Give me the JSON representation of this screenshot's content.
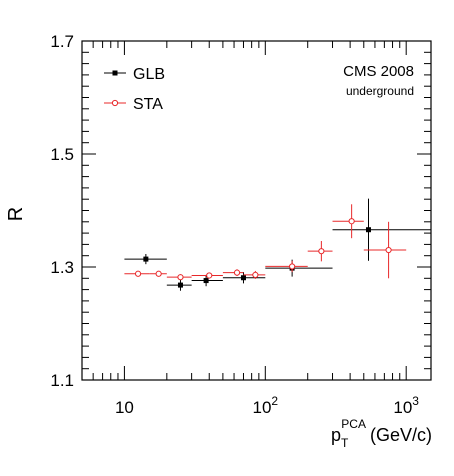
{
  "chart_data": {
    "type": "scatter",
    "ylabel": "R",
    "xlabel": {
      "main": "p",
      "sub": "T",
      "sup": "PCA",
      "unit": "(GeV/c)"
    },
    "xscale": "log",
    "xlim": [
      5,
      1500
    ],
    "ylim": [
      1.1,
      1.7
    ],
    "x_ticks": [
      {
        "label": "10",
        "value": 10
      },
      {
        "label": "10",
        "exp": "2",
        "value": 100
      },
      {
        "label": "10",
        "exp": "3",
        "value": 1000
      }
    ],
    "y_ticks": [
      "1.1",
      "1.3",
      "1.5",
      "1.7"
    ],
    "annotation": {
      "line1": "CMS 2008",
      "line2": "underground"
    },
    "legend_position": "top-left",
    "series": [
      {
        "name": "GLB",
        "color": "#000000",
        "marker": "filled-square",
        "points": [
          {
            "x": 14.2,
            "xlo": 10,
            "xhi": 20,
            "y": 1.314,
            "yerr": 0.009
          },
          {
            "x": 25,
            "xlo": 20,
            "xhi": 30,
            "y": 1.268,
            "yerr": 0.01
          },
          {
            "x": 38,
            "xlo": 30,
            "xhi": 50,
            "y": 1.276,
            "yerr": 0.01
          },
          {
            "x": 70,
            "xlo": 50,
            "xhi": 100,
            "y": 1.281,
            "yerr": 0.01
          },
          {
            "x": 155,
            "xlo": 100,
            "xhi": 300,
            "y": 1.298,
            "yerr": 0.015
          },
          {
            "x": 540,
            "xlo": 300,
            "xhi": 1500,
            "y": 1.366,
            "yerr": 0.055
          }
        ]
      },
      {
        "name": "STA",
        "color": "#e8282a",
        "marker": "open-circle",
        "points": [
          {
            "x": 12.5,
            "xlo": 10,
            "xhi": 15,
            "y": 1.288,
            "yerr": 0.004
          },
          {
            "x": 17.5,
            "xlo": 15,
            "xhi": 20,
            "y": 1.288,
            "yerr": 0.004
          },
          {
            "x": 25,
            "xlo": 20,
            "xhi": 30,
            "y": 1.282,
            "yerr": 0.005
          },
          {
            "x": 40,
            "xlo": 30,
            "xhi": 50,
            "y": 1.285,
            "yerr": 0.005
          },
          {
            "x": 63,
            "xlo": 50,
            "xhi": 70,
            "y": 1.29,
            "yerr": 0.006
          },
          {
            "x": 85,
            "xlo": 70,
            "xhi": 100,
            "y": 1.286,
            "yerr": 0.007
          },
          {
            "x": 155,
            "xlo": 100,
            "xhi": 200,
            "y": 1.301,
            "yerr": 0.01
          },
          {
            "x": 250,
            "xlo": 200,
            "xhi": 300,
            "y": 1.328,
            "yerr": 0.018
          },
          {
            "x": 410,
            "xlo": 300,
            "xhi": 500,
            "y": 1.381,
            "yerr": 0.03
          },
          {
            "x": 750,
            "xlo": 500,
            "xhi": 1000,
            "y": 1.33,
            "yerr": 0.05
          }
        ]
      }
    ]
  }
}
